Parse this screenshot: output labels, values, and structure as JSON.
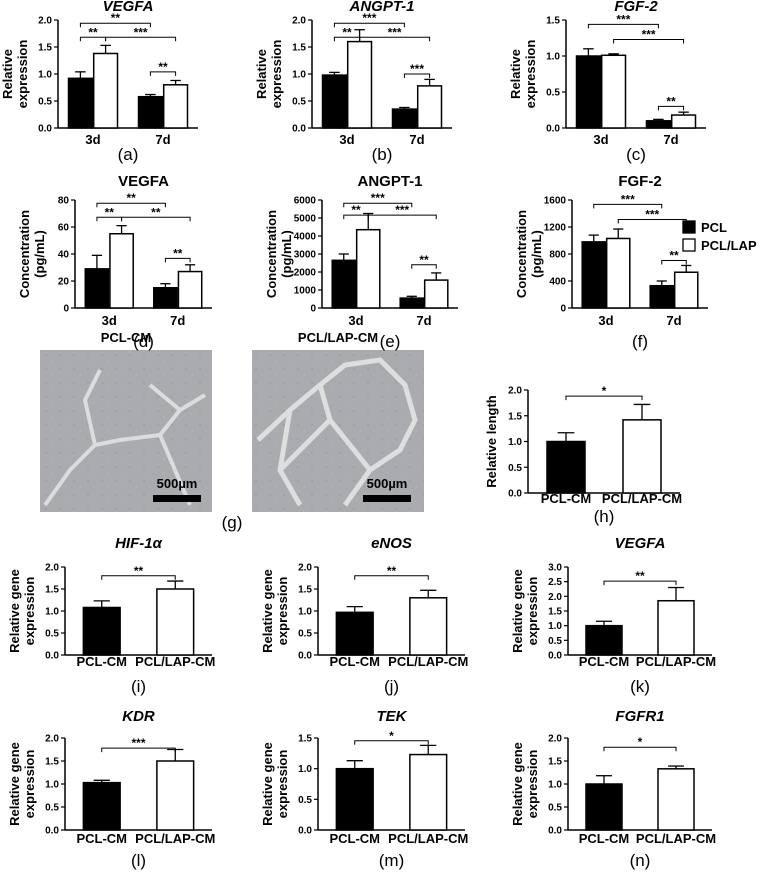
{
  "chart_data": [
    {
      "type": "bar",
      "panel": "(a)",
      "title": "VEGFA",
      "ylabel": [
        "Relative",
        "expression"
      ],
      "categories": [
        "3d",
        "7d"
      ],
      "series": [
        {
          "name": "PCL",
          "color": "#000000",
          "values": [
            0.92,
            0.58
          ],
          "errors": [
            0.12,
            0.04
          ]
        },
        {
          "name": "PCL/LAP",
          "color": "#ffffff",
          "values": [
            1.38,
            0.8
          ],
          "errors": [
            0.15,
            0.08
          ]
        }
      ],
      "ylim": [
        0,
        2
      ],
      "yticks": [
        {
          "value": 0,
          "label": "0.0"
        },
        0.5,
        {
          "value": 1,
          "label": "1.0"
        },
        1.5,
        {
          "value": 2,
          "label": "2.0"
        }
      ],
      "annotations": [
        "**",
        "**",
        "***",
        "**"
      ]
    },
    {
      "type": "bar",
      "panel": "(b)",
      "title": "ANGPT-1",
      "ylabel": [
        "Relative",
        "expression"
      ],
      "categories": [
        "3d",
        "7d"
      ],
      "series": [
        {
          "name": "PCL",
          "color": "#000000",
          "values": [
            0.98,
            0.35
          ],
          "errors": [
            0.05,
            0.03
          ]
        },
        {
          "name": "PCL/LAP",
          "color": "#ffffff",
          "values": [
            1.6,
            0.78
          ],
          "errors": [
            0.22,
            0.12
          ]
        }
      ],
      "ylim": [
        0,
        2
      ],
      "yticks": [
        {
          "value": 0,
          "label": "0.0"
        },
        0.5,
        {
          "value": 1,
          "label": "1.0"
        },
        1.5,
        {
          "value": 2,
          "label": "2.0"
        }
      ],
      "annotations": [
        "***",
        "**",
        "***",
        "***"
      ]
    },
    {
      "type": "bar",
      "panel": "(c)",
      "title": "FGF-2",
      "ylabel": [
        "Relative",
        "expression"
      ],
      "categories": [
        "3d",
        "7d"
      ],
      "series": [
        {
          "name": "PCL",
          "color": "#000000",
          "values": [
            1.0,
            0.1
          ],
          "errors": [
            0.1,
            0.02
          ]
        },
        {
          "name": "PCL/LAP",
          "color": "#ffffff",
          "values": [
            1.01,
            0.18
          ],
          "errors": [
            0.02,
            0.04
          ]
        }
      ],
      "ylim": [
        0,
        1.5
      ],
      "yticks": [
        {
          "value": 0,
          "label": "0.0"
        },
        0.5,
        {
          "value": 1,
          "label": "1.0"
        },
        1.5
      ],
      "annotations": [
        "***",
        "***",
        "**"
      ]
    },
    {
      "type": "bar",
      "panel": "(d)",
      "title": "VEGFA",
      "ylabel": [
        "Concentration",
        "(pg/mL)"
      ],
      "categories": [
        "3d",
        "7d"
      ],
      "series": [
        {
          "name": "PCL",
          "color": "#000000",
          "values": [
            29,
            15
          ],
          "errors": [
            10,
            3
          ]
        },
        {
          "name": "PCL/LAP",
          "color": "#ffffff",
          "values": [
            55,
            27
          ],
          "errors": [
            6,
            5
          ]
        }
      ],
      "ylim": [
        0,
        80
      ],
      "yticks": [
        0,
        20,
        40,
        60,
        80
      ],
      "annotations": [
        "**",
        "**",
        "**",
        "**"
      ]
    },
    {
      "type": "bar",
      "panel": "(e)",
      "title": "ANGPT-1",
      "ylabel": [
        "Concentration",
        "(pg/mL)"
      ],
      "categories": [
        "3d",
        "7d"
      ],
      "series": [
        {
          "name": "PCL",
          "color": "#000000",
          "values": [
            2650,
            550
          ],
          "errors": [
            350,
            100
          ]
        },
        {
          "name": "PCL/LAP",
          "color": "#ffffff",
          "values": [
            4350,
            1550
          ],
          "errors": [
            900,
            400
          ]
        }
      ],
      "ylim": [
        0,
        6000
      ],
      "yticks": [
        0,
        1000,
        2000,
        3000,
        4000,
        5000,
        6000
      ],
      "annotations": [
        "***",
        "**",
        "***",
        "**"
      ]
    },
    {
      "type": "bar",
      "panel": "(f)",
      "title": "FGF-2",
      "ylabel": [
        "Concentration",
        "(pg/mL)"
      ],
      "categories": [
        "3d",
        "7d"
      ],
      "series": [
        {
          "name": "PCL",
          "color": "#000000",
          "values": [
            980,
            330
          ],
          "errors": [
            100,
            70
          ]
        },
        {
          "name": "PCL/LAP",
          "color": "#ffffff",
          "values": [
            1030,
            530
          ],
          "errors": [
            140,
            100
          ]
        }
      ],
      "ylim": [
        0,
        1600
      ],
      "yticks": [
        0,
        400,
        800,
        1200,
        1600
      ],
      "annotations": [
        "***",
        "***",
        "**"
      ]
    },
    {
      "type": "bar",
      "panel": "(h)",
      "ylabel": [
        "Relative length"
      ],
      "categories": [
        "PCL-CM",
        "PCL/LAP-CM"
      ],
      "values": [
        1.0,
        1.42
      ],
      "errors": [
        0.17,
        0.3
      ],
      "colors": [
        "#000000",
        "#ffffff"
      ],
      "ylim": [
        0,
        2
      ],
      "yticks": [
        {
          "value": 0,
          "label": "0.0"
        },
        0.5,
        {
          "value": 1,
          "label": "1.0"
        },
        1.5,
        {
          "value": 2,
          "label": "2.0"
        }
      ],
      "annotations": [
        "*"
      ]
    },
    {
      "type": "bar",
      "panel": "(i)",
      "title": "HIF-1α",
      "ylabel": [
        "Relative gene",
        "expression"
      ],
      "categories": [
        "PCL-CM",
        "PCL/LAP-CM"
      ],
      "values": [
        1.08,
        1.5
      ],
      "errors": [
        0.15,
        0.18
      ],
      "colors": [
        "#000000",
        "#ffffff"
      ],
      "ylim": [
        0,
        2
      ],
      "yticks": [
        {
          "value": 0,
          "label": "0.0"
        },
        0.5,
        {
          "value": 1,
          "label": "1.0"
        },
        1.5,
        {
          "value": 2,
          "label": "2.0"
        }
      ],
      "annotations": [
        "**"
      ]
    },
    {
      "type": "bar",
      "panel": "(j)",
      "title": "eNOS",
      "ylabel": [
        "Relative gene",
        "expression"
      ],
      "categories": [
        "PCL-CM",
        "PCL/LAP-CM"
      ],
      "values": [
        0.97,
        1.3
      ],
      "errors": [
        0.13,
        0.17
      ],
      "colors": [
        "#000000",
        "#ffffff"
      ],
      "ylim": [
        0,
        2
      ],
      "yticks": [
        {
          "value": 0,
          "label": "0.0"
        },
        0.5,
        {
          "value": 1,
          "label": "1.0"
        },
        1.5,
        {
          "value": 2,
          "label": "2.0"
        }
      ],
      "annotations": [
        "**"
      ]
    },
    {
      "type": "bar",
      "panel": "(k)",
      "title": "VEGFA",
      "ylabel": [
        "Relative gene",
        "expression"
      ],
      "categories": [
        "PCL-CM",
        "PCL/LAP-CM"
      ],
      "values": [
        1.0,
        1.85
      ],
      "errors": [
        0.15,
        0.45
      ],
      "colors": [
        "#000000",
        "#ffffff"
      ],
      "ylim": [
        0,
        3
      ],
      "yticks": [
        {
          "value": 0,
          "label": "0.0"
        },
        0.5,
        {
          "value": 1,
          "label": "1.0"
        },
        1.5,
        {
          "value": 2,
          "label": "2.0"
        },
        2.5,
        {
          "value": 3,
          "label": "3.0"
        }
      ],
      "annotations": [
        "**"
      ]
    },
    {
      "type": "bar",
      "panel": "(l)",
      "title": "KDR",
      "ylabel": [
        "Relative gene",
        "expression"
      ],
      "categories": [
        "PCL-CM",
        "PCL/LAP-CM"
      ],
      "values": [
        1.03,
        1.5
      ],
      "errors": [
        0.05,
        0.25
      ],
      "colors": [
        "#000000",
        "#ffffff"
      ],
      "ylim": [
        0,
        2
      ],
      "yticks": [
        {
          "value": 0,
          "label": "0.0"
        },
        0.5,
        {
          "value": 1,
          "label": "1.0"
        },
        1.5,
        {
          "value": 2,
          "label": "2.0"
        }
      ],
      "annotations": [
        "***"
      ]
    },
    {
      "type": "bar",
      "panel": "(m)",
      "title": "TEK",
      "ylabel": [
        "Relative gene",
        "expression"
      ],
      "categories": [
        "PCL-CM",
        "PCL/LAP-CM"
      ],
      "values": [
        1.0,
        1.23
      ],
      "errors": [
        0.13,
        0.15
      ],
      "colors": [
        "#000000",
        "#ffffff"
      ],
      "ylim": [
        0,
        1.5
      ],
      "yticks": [
        {
          "value": 0,
          "label": "0.0"
        },
        0.5,
        {
          "value": 1,
          "label": "1.0"
        },
        1.5
      ],
      "annotations": [
        "*"
      ]
    },
    {
      "type": "bar",
      "panel": "(n)",
      "title": "FGFR1",
      "ylabel": [
        "Relative gene",
        "expression"
      ],
      "categories": [
        "PCL-CM",
        "PCL/LAP-CM"
      ],
      "values": [
        1.0,
        1.33
      ],
      "errors": [
        0.18,
        0.06
      ],
      "colors": [
        "#000000",
        "#ffffff"
      ],
      "ylim": [
        0,
        2
      ],
      "yticks": [
        {
          "value": 0,
          "label": "0.0"
        },
        0.5,
        {
          "value": 1,
          "label": "1.0"
        },
        1.5,
        {
          "value": 2,
          "label": "2.0"
        }
      ],
      "annotations": [
        "*"
      ]
    }
  ],
  "panel_g": {
    "panel": "(g)",
    "images": [
      {
        "title": "PCL-CM",
        "scale_bar": "500µm"
      },
      {
        "title": "PCL/LAP-CM",
        "scale_bar": "500µm"
      }
    ]
  }
}
